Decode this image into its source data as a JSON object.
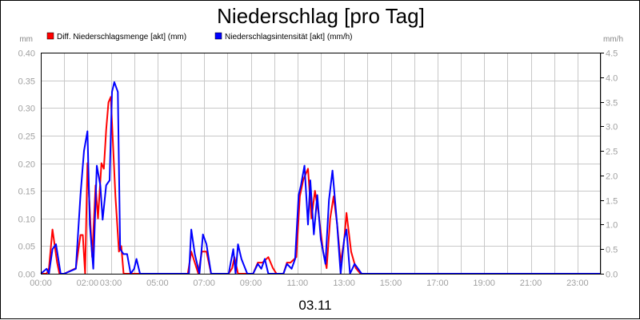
{
  "chart_data": {
    "type": "line",
    "title": "Niederschlag [pro Tag]",
    "date_label": "03.11",
    "y_left_unit": "mm",
    "y_right_unit": "mm/h",
    "x_ticks": [
      "00:00",
      "02:00",
      "03:00",
      "05:00",
      "07:00",
      "09:00",
      "11:00",
      "13:00",
      "15:00",
      "17:00",
      "19:00",
      "21:00",
      "23:00"
    ],
    "x_tick_hours": [
      0,
      2,
      3,
      5,
      7,
      9,
      11,
      13,
      15,
      17,
      19,
      21,
      23
    ],
    "y_left_ticks": [
      "0.00",
      "0.05",
      "0.10",
      "0.15",
      "0.20",
      "0.25",
      "0.30",
      "0.35",
      "0.40"
    ],
    "y_right_ticks": [
      "0.0",
      "0.5",
      "1.0",
      "1.5",
      "2.0",
      "2.5",
      "3.0",
      "3.5",
      "4.0",
      "4.5"
    ],
    "x_range_hours": [
      0,
      24
    ],
    "y_left_range": [
      0,
      0.4
    ],
    "y_right_range": [
      0,
      4.5
    ],
    "grid": true,
    "legend_position": "top-left",
    "series": [
      {
        "name": "Diff. Niederschlagsmenge [akt] (mm)",
        "axis": "left",
        "color": "#ff0000",
        "x": [
          0,
          0.25,
          0.35,
          0.5,
          0.6,
          0.7,
          0.8,
          1.0,
          1.5,
          1.7,
          1.8,
          1.9,
          2.0,
          2.2,
          2.35,
          2.45,
          2.6,
          2.7,
          2.8,
          2.9,
          3.0,
          3.2,
          3.35,
          3.45,
          3.55,
          3.7,
          3.8,
          3.95,
          4.05,
          4.2,
          4.4,
          6.0,
          6.3,
          6.45,
          6.6,
          6.75,
          6.9,
          7.1,
          7.3,
          8.05,
          8.2,
          8.3,
          8.45,
          8.6,
          8.85,
          9.1,
          9.3,
          9.5,
          9.75,
          9.95,
          10.1,
          10.4,
          10.55,
          10.7,
          10.95,
          11.1,
          11.25,
          11.45,
          11.6,
          11.75,
          11.9,
          12.1,
          12.25,
          12.4,
          12.55,
          12.7,
          12.85,
          13.0,
          13.1,
          13.3,
          13.5,
          13.7,
          24
        ],
        "values": [
          0.0,
          0.0,
          0.01,
          0.08,
          0.05,
          0.02,
          0.0,
          0.0,
          0.01,
          0.07,
          0.07,
          0.0,
          0.2,
          0.03,
          0.16,
          0.1,
          0.2,
          0.19,
          0.26,
          0.31,
          0.32,
          0.14,
          0.04,
          0.05,
          0.0,
          0.0,
          0.0,
          0.0,
          0.0,
          0.0,
          0.0,
          0.0,
          0.0,
          0.04,
          0.02,
          0.0,
          0.04,
          0.04,
          0.0,
          0.0,
          0.01,
          0.03,
          0.0,
          0.0,
          0.0,
          0.0,
          0.02,
          0.02,
          0.03,
          0.01,
          0.0,
          0.0,
          0.02,
          0.02,
          0.03,
          0.14,
          0.17,
          0.19,
          0.1,
          0.15,
          0.11,
          0.04,
          0.01,
          0.1,
          0.14,
          0.09,
          0.02,
          0.06,
          0.11,
          0.04,
          0.01,
          0.0,
          0.0
        ]
      },
      {
        "name": "Niederschlagsintensität [akt] (mm/h)",
        "axis": "right",
        "color": "#0000ff",
        "x": [
          0,
          0.25,
          0.35,
          0.5,
          0.65,
          0.75,
          0.85,
          1.0,
          1.5,
          1.7,
          1.85,
          2.0,
          2.1,
          2.25,
          2.4,
          2.55,
          2.65,
          2.8,
          2.95,
          3.05,
          3.15,
          3.3,
          3.4,
          3.55,
          3.7,
          3.85,
          4.0,
          4.1,
          4.25,
          4.4,
          6.0,
          6.35,
          6.45,
          6.6,
          6.8,
          6.95,
          7.1,
          7.3,
          8.05,
          8.25,
          8.35,
          8.45,
          8.6,
          8.85,
          9.1,
          9.3,
          9.45,
          9.6,
          9.75,
          9.95,
          10.1,
          10.4,
          10.55,
          10.75,
          10.9,
          11.05,
          11.15,
          11.3,
          11.45,
          11.55,
          11.7,
          11.85,
          12.0,
          12.2,
          12.35,
          12.5,
          12.7,
          12.85,
          13.0,
          13.1,
          13.25,
          13.45,
          13.6,
          13.75,
          24
        ],
        "values": [
          0.0,
          0.1,
          0.0,
          0.5,
          0.6,
          0.3,
          0.0,
          0.0,
          0.1,
          1.6,
          2.5,
          2.9,
          1.0,
          0.1,
          2.2,
          1.8,
          1.1,
          1.8,
          1.9,
          3.7,
          3.9,
          3.7,
          0.5,
          0.4,
          0.4,
          0.0,
          0.1,
          0.3,
          0.0,
          0.0,
          0.0,
          0.0,
          0.9,
          0.4,
          0.0,
          0.8,
          0.6,
          0.0,
          0.0,
          0.5,
          0.0,
          0.6,
          0.3,
          0.0,
          0.0,
          0.2,
          0.1,
          0.3,
          0.0,
          0.0,
          0.0,
          0.0,
          0.2,
          0.1,
          0.3,
          1.6,
          1.8,
          2.2,
          1.0,
          1.9,
          0.8,
          1.6,
          0.7,
          0.2,
          1.5,
          2.1,
          1.0,
          0.0,
          0.7,
          0.9,
          0.0,
          0.2,
          0.1,
          0.0,
          0.0
        ]
      }
    ]
  }
}
